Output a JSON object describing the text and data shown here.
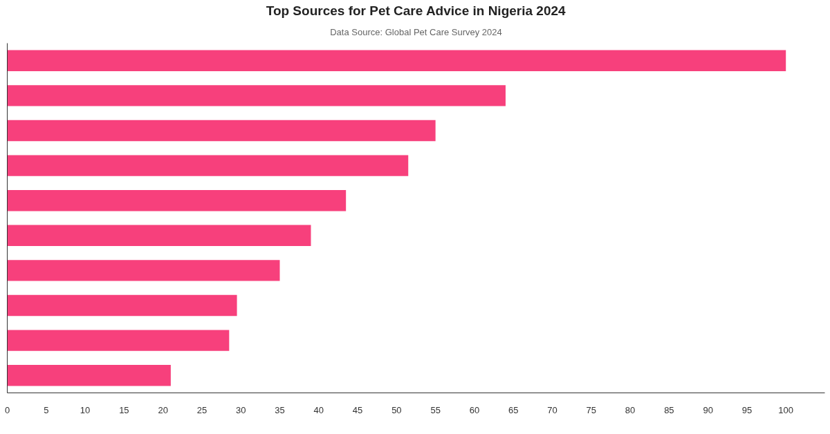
{
  "chart_data": {
    "type": "bar",
    "orientation": "horizontal",
    "title": "Top Sources for Pet Care Advice in Nigeria 2024",
    "subtitle": "Data Source: Global Pet Care Survey 2024",
    "categories": [
      null,
      null,
      null,
      null,
      null,
      null,
      null,
      null,
      null,
      null
    ],
    "values": [
      100,
      64,
      55,
      51.5,
      43.5,
      39,
      35,
      29.5,
      28.5,
      21
    ],
    "color": "#f7407c",
    "xlim": [
      0,
      105
    ],
    "xticks": [
      0,
      5,
      10,
      15,
      20,
      25,
      30,
      35,
      40,
      45,
      50,
      55,
      60,
      65,
      70,
      75,
      80,
      85,
      90,
      95,
      100
    ]
  }
}
